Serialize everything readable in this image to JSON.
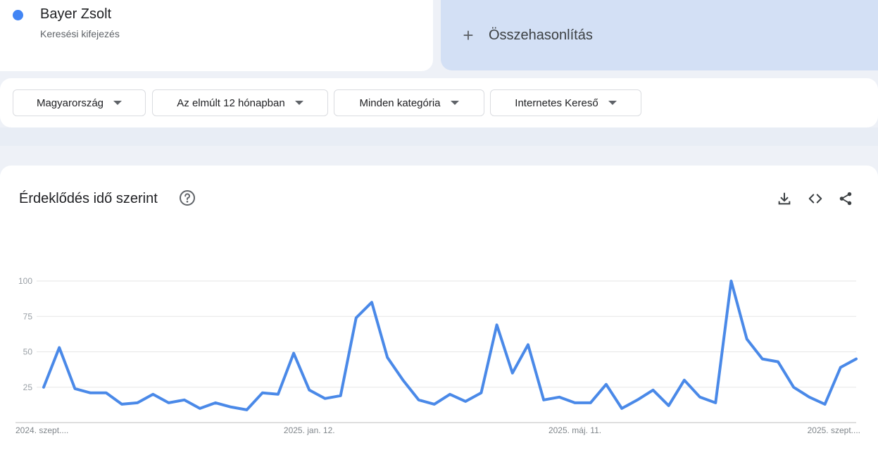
{
  "term": {
    "name": "Bayer Zsolt",
    "type": "Keresési kifejezés",
    "color": "#4285f4"
  },
  "compare": {
    "label": "Összehasonlítás"
  },
  "filters": {
    "region": "Magyarország",
    "period": "Az elmúlt 12 hónapban",
    "category": "Minden kategória",
    "source": "Internetes Kereső"
  },
  "panel": {
    "title": "Érdeklődés idő szerint",
    "icons": [
      "help-icon",
      "download-icon",
      "embed-icon",
      "share-icon"
    ]
  },
  "chart_data": {
    "type": "line",
    "title": "",
    "xlabel": "",
    "ylabel": "",
    "ylim": [
      0,
      100
    ],
    "yticks": [
      25,
      50,
      75,
      100
    ],
    "grid": true,
    "x_tick_labels": [
      "2024. szept....",
      "2025. jan. 12.",
      "2025. máj. 11.",
      "2025. szept...."
    ],
    "x_tick_indices": [
      0,
      17,
      34,
      51
    ],
    "series": [
      {
        "name": "Bayer Zsolt",
        "color": "#4a89e8",
        "values": [
          25,
          53,
          24,
          21,
          21,
          13,
          14,
          20,
          14,
          16,
          10,
          14,
          11,
          9,
          21,
          20,
          49,
          23,
          17,
          19,
          74,
          85,
          46,
          30,
          16,
          13,
          20,
          15,
          21,
          69,
          35,
          55,
          16,
          18,
          14,
          14,
          27,
          10,
          16,
          23,
          12,
          30,
          18,
          14,
          100,
          59,
          45,
          43,
          25,
          18,
          13,
          39,
          45
        ]
      }
    ]
  }
}
